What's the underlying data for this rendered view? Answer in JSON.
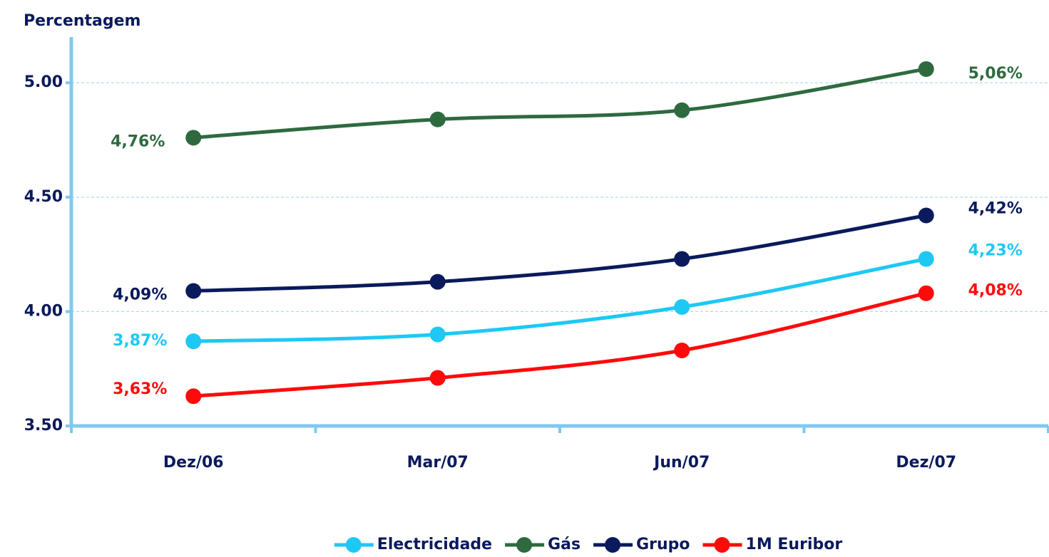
{
  "chart_data": {
    "type": "line",
    "y_label": "Percentagem",
    "categories": [
      "Dez/06",
      "Mar/07",
      "Jun/07",
      "Dez/07"
    ],
    "ylim": [
      3.5,
      5.2
    ],
    "yticks": [
      {
        "value": 3.5,
        "label": "3.50"
      },
      {
        "value": 4,
        "label": "4.00"
      },
      {
        "value": 4.5,
        "label": "4.50"
      },
      {
        "value": 5,
        "label": "5.00"
      }
    ],
    "grid": true,
    "legend": "bottom",
    "series": [
      {
        "name": "Electricidade",
        "color": "#1ec8f5",
        "values": [
          3.87,
          3.9,
          4.02,
          4.23
        ],
        "value_labels": [
          "3,87%",
          null,
          null,
          "4,23%"
        ]
      },
      {
        "name": "Gás",
        "color": "#2e6a3e",
        "values": [
          4.76,
          4.84,
          4.88,
          5.06
        ],
        "value_labels": [
          "4,76%",
          null,
          null,
          "5,06%"
        ]
      },
      {
        "name": "Grupo",
        "color": "#0a1a5c",
        "values": [
          4.09,
          4.13,
          4.23,
          4.42
        ],
        "value_labels": [
          "4,09%",
          null,
          null,
          "4,42%"
        ]
      },
      {
        "name": "1M Euribor",
        "color": "#ff0a0a",
        "values": [
          3.63,
          3.71,
          3.83,
          4.08
        ],
        "value_labels": [
          "3,63%",
          null,
          null,
          "4,08%"
        ]
      }
    ]
  }
}
